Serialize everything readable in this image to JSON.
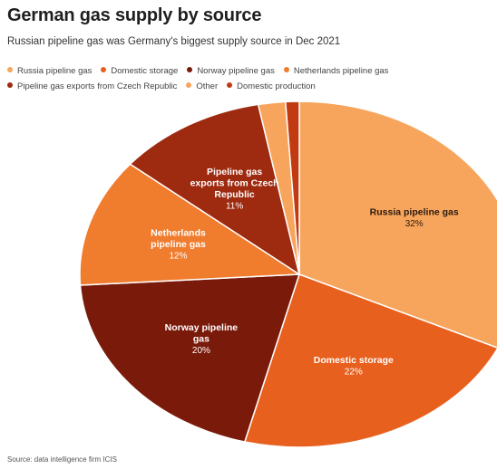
{
  "header": {
    "title": "German gas supply by source",
    "subtitle": "Russian pipeline gas was Germany's biggest supply source in Dec 2021"
  },
  "footer": {
    "source": "Source: data intelligence firm ICIS"
  },
  "chart_data": {
    "type": "pie",
    "title": "German gas supply by source",
    "subtitle": "Russian pipeline gas was Germany's biggest supply source in Dec 2021",
    "legend_position": "top",
    "start_angle_deg": 0,
    "direction": "clockwise",
    "slices": [
      {
        "label": "Russia pipeline gas",
        "value": 32,
        "value_label": "32%",
        "color": "#F7A55C",
        "slice_label_lines": [
          "Russia pipeline gas"
        ],
        "label_color": "#2b1a10"
      },
      {
        "label": "Domestic storage",
        "value": 22,
        "value_label": "22%",
        "color": "#E8601E",
        "slice_label_lines": [
          "Domestic storage"
        ],
        "label_color": "#ffffff"
      },
      {
        "label": "Norway pipeline gas",
        "value": 20,
        "value_label": "20%",
        "color": "#7A1A0A",
        "slice_label_lines": [
          "Norway pipeline",
          "gas"
        ],
        "label_color": "#ffffff"
      },
      {
        "label": "Netherlands pipeline gas",
        "value": 12,
        "value_label": "12%",
        "color": "#F07C2E",
        "slice_label_lines": [
          "Netherlands",
          "pipeline gas"
        ],
        "label_color": "#ffffff"
      },
      {
        "label": "Pipeline gas exports from Czech Republic",
        "value": 11,
        "value_label": "11%",
        "color": "#9E2A10",
        "slice_label_lines": [
          "Pipeline gas",
          "exports from Czech",
          "Republic"
        ],
        "label_color": "#ffffff"
      },
      {
        "label": "Other",
        "value": 2,
        "value_label": "",
        "color": "#F7A55C",
        "slice_label_lines": [],
        "label_color": "#ffffff"
      },
      {
        "label": "Domestic production",
        "value": 1,
        "value_label": "",
        "color": "#C23A12",
        "slice_label_lines": [],
        "label_color": "#ffffff"
      }
    ]
  }
}
